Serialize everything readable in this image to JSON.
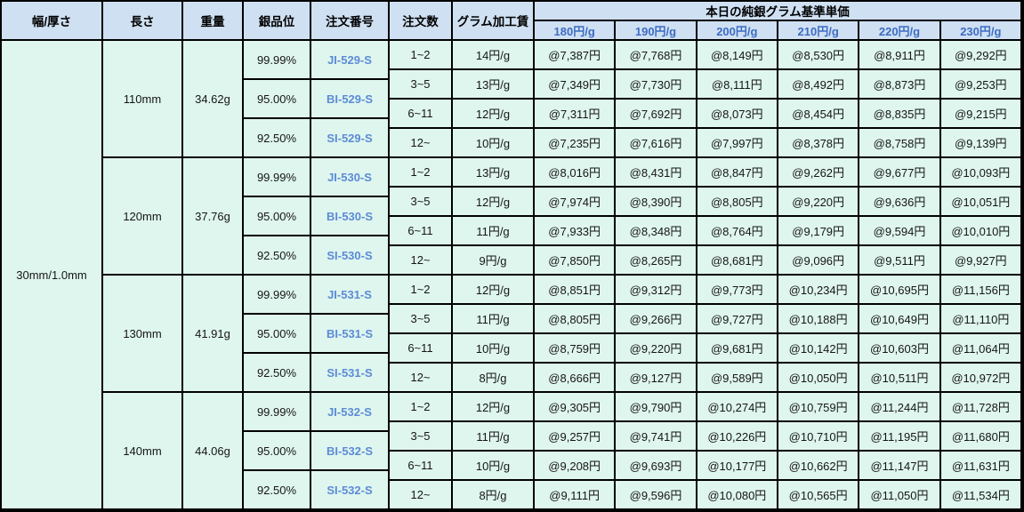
{
  "header": {
    "width_thickness": "幅/厚さ",
    "length": "長さ",
    "weight": "重量",
    "purity": "銀品位",
    "order_no": "注文番号",
    "qty": "注文数",
    "gram_fee": "グラム加工賃",
    "today_title": "本日の純銀グラム基準単価",
    "price_cols": [
      "180円/g",
      "190円/g",
      "200円/g",
      "210円/g",
      "220円/g",
      "230円/g"
    ]
  },
  "size": "30mm/1.0mm",
  "colors": {
    "header_bg": "#cfe0f2",
    "body_bg": "#dff6ee",
    "border": "#000000",
    "price_header_text": "#3d6cc3",
    "order_no_text": "#5c8bd6"
  },
  "blocks": [
    {
      "length": "110mm",
      "weight": "34.62g",
      "purities": [
        {
          "purity": "99.99%",
          "order_no": "JI-529-S"
        },
        {
          "purity": "95.00%",
          "order_no": "BI-529-S"
        },
        {
          "purity": "92.50%",
          "order_no": "SI-529-S"
        }
      ],
      "rows": [
        {
          "qty": "1~2",
          "fee": "14円/g",
          "prices": [
            "@7,387円",
            "@7,768円",
            "@8,149円",
            "@8,530円",
            "@8,911円",
            "@9,292円"
          ]
        },
        {
          "qty": "3~5",
          "fee": "13円/g",
          "prices": [
            "@7,349円",
            "@7,730円",
            "@8,111円",
            "@8,492円",
            "@8,873円",
            "@9,253円"
          ]
        },
        {
          "qty": "6~11",
          "fee": "12円/g",
          "prices": [
            "@7,311円",
            "@7,692円",
            "@8,073円",
            "@8,454円",
            "@8,835円",
            "@9,215円"
          ]
        },
        {
          "qty": "12~",
          "fee": "10円/g",
          "prices": [
            "@7,235円",
            "@7,616円",
            "@7,997円",
            "@8,378円",
            "@8,758円",
            "@9,139円"
          ]
        }
      ]
    },
    {
      "length": "120mm",
      "weight": "37.76g",
      "purities": [
        {
          "purity": "99.99%",
          "order_no": "JI-530-S"
        },
        {
          "purity": "95.00%",
          "order_no": "BI-530-S"
        },
        {
          "purity": "92.50%",
          "order_no": "SI-530-S"
        }
      ],
      "rows": [
        {
          "qty": "1~2",
          "fee": "13円/g",
          "prices": [
            "@8,016円",
            "@8,431円",
            "@8,847円",
            "@9,262円",
            "@9,677円",
            "@10,093円"
          ]
        },
        {
          "qty": "3~5",
          "fee": "12円/g",
          "prices": [
            "@7,974円",
            "@8,390円",
            "@8,805円",
            "@9,220円",
            "@9,636円",
            "@10,051円"
          ]
        },
        {
          "qty": "6~11",
          "fee": "11円/g",
          "prices": [
            "@7,933円",
            "@8,348円",
            "@8,764円",
            "@9,179円",
            "@9,594円",
            "@10,010円"
          ]
        },
        {
          "qty": "12~",
          "fee": "9円/g",
          "prices": [
            "@7,850円",
            "@8,265円",
            "@8,681円",
            "@9,096円",
            "@9,511円",
            "@9,927円"
          ]
        }
      ]
    },
    {
      "length": "130mm",
      "weight": "41.91g",
      "purities": [
        {
          "purity": "99.99%",
          "order_no": "JI-531-S"
        },
        {
          "purity": "95.00%",
          "order_no": "BI-531-S"
        },
        {
          "purity": "92.50%",
          "order_no": "SI-531-S"
        }
      ],
      "rows": [
        {
          "qty": "1~2",
          "fee": "12円/g",
          "prices": [
            "@8,851円",
            "@9,312円",
            "@9,773円",
            "@10,234円",
            "@10,695円",
            "@11,156円"
          ]
        },
        {
          "qty": "3~5",
          "fee": "11円/g",
          "prices": [
            "@8,805円",
            "@9,266円",
            "@9,727円",
            "@10,188円",
            "@10,649円",
            "@11,110円"
          ]
        },
        {
          "qty": "6~11",
          "fee": "10円/g",
          "prices": [
            "@8,759円",
            "@9,220円",
            "@9,681円",
            "@10,142円",
            "@10,603円",
            "@11,064円"
          ]
        },
        {
          "qty": "12~",
          "fee": "8円/g",
          "prices": [
            "@8,666円",
            "@9,127円",
            "@9,589円",
            "@10,050円",
            "@10,511円",
            "@10,972円"
          ]
        }
      ]
    },
    {
      "length": "140mm",
      "weight": "44.06g",
      "purities": [
        {
          "purity": "99.99%",
          "order_no": "JI-532-S"
        },
        {
          "purity": "95.00%",
          "order_no": "BI-532-S"
        },
        {
          "purity": "92.50%",
          "order_no": "SI-532-S"
        }
      ],
      "rows": [
        {
          "qty": "1~2",
          "fee": "12円/g",
          "prices": [
            "@9,305円",
            "@9,790円",
            "@10,274円",
            "@10,759円",
            "@11,244円",
            "@11,728円"
          ]
        },
        {
          "qty": "3~5",
          "fee": "11円/g",
          "prices": [
            "@9,257円",
            "@9,741円",
            "@10,226円",
            "@10,710円",
            "@11,195円",
            "@11,680円"
          ]
        },
        {
          "qty": "6~11",
          "fee": "10円/g",
          "prices": [
            "@9,208円",
            "@9,693円",
            "@10,177円",
            "@10,662円",
            "@11,147円",
            "@11,631円"
          ]
        },
        {
          "qty": "12~",
          "fee": "8円/g",
          "prices": [
            "@9,111円",
            "@9,596円",
            "@10,080円",
            "@10,565円",
            "@11,050円",
            "@11,534円"
          ]
        }
      ]
    }
  ]
}
